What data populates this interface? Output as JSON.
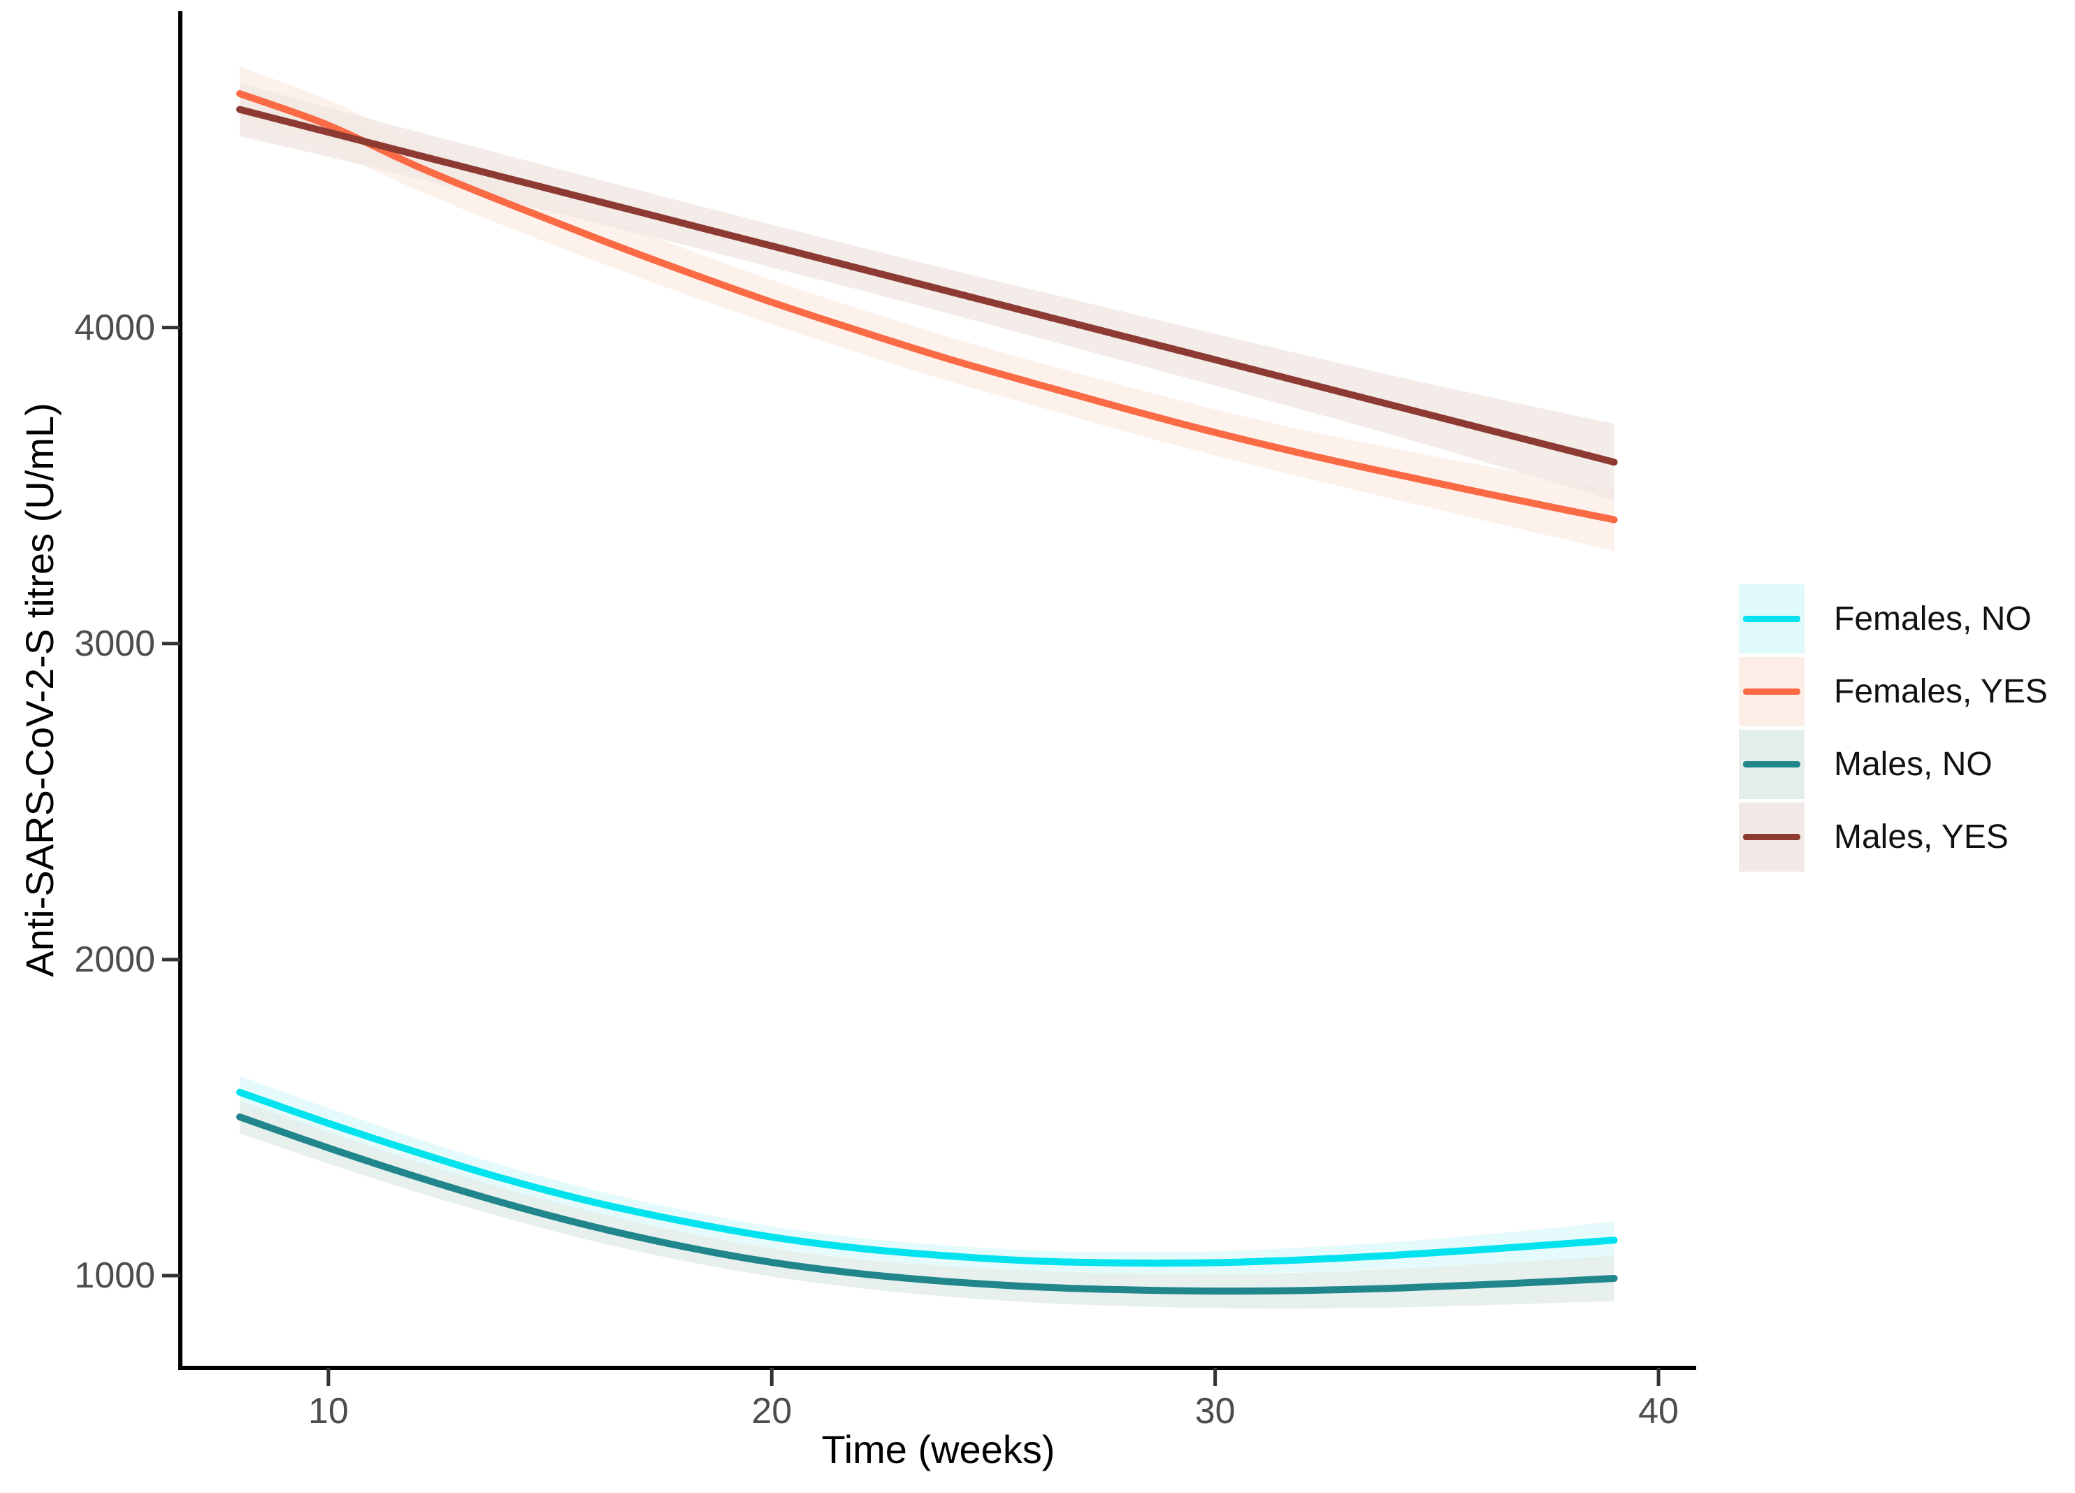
{
  "window": {
    "background": "#ffffff"
  },
  "axes_style": {
    "axis_color": "#000000",
    "tick_color": "#333333",
    "tick_label_color": "#4d4d4d",
    "title_color": "#000000"
  },
  "chart_data": {
    "type": "line",
    "title": "",
    "xlabel": "Time (weeks)",
    "ylabel": "Anti-SARS-CoV-2-S titres (U/mL)",
    "grid": false,
    "legend_position": "right",
    "x_axis": {
      "ticks": [
        10,
        20,
        30,
        40
      ],
      "labels": [
        "10",
        "20",
        "30",
        "40"
      ],
      "range": [
        6.66,
        40.85
      ]
    },
    "y_axis": {
      "ticks": [
        1000,
        2000,
        3000,
        4000
      ],
      "labels": [
        "1000",
        "2000",
        "3000",
        "4000"
      ],
      "range": [
        708,
        5001
      ]
    },
    "x": [
      8,
      10,
      12,
      14,
      16,
      18,
      20,
      22,
      24,
      26,
      28,
      30,
      32,
      34,
      36,
      38,
      39
    ],
    "series": [
      {
        "name": "Females, NO",
        "line_color": "#00e3ee",
        "band_color": "#e0f9fa",
        "values": [
          1580,
          1482,
          1390,
          1305,
          1232,
          1172,
          1122,
          1086,
          1062,
          1046,
          1040,
          1041,
          1050,
          1064,
          1082,
          1102,
          1112
        ],
        "lower": [
          1528,
          1434,
          1346,
          1264,
          1194,
          1136,
          1088,
          1053,
          1029,
          1013,
          1006,
          1005,
          1011,
          1022,
          1035,
          1048,
          1052
        ],
        "upper": [
          1632,
          1530,
          1434,
          1346,
          1270,
          1208,
          1156,
          1119,
          1095,
          1079,
          1074,
          1077,
          1089,
          1106,
          1129,
          1156,
          1172
        ]
      },
      {
        "name": "Females, YES",
        "line_color": "#fa6a45",
        "band_color": "#fceee7",
        "values": [
          4740,
          4640,
          4510,
          4395,
          4285,
          4180,
          4080,
          3988,
          3900,
          3820,
          3742,
          3668,
          3600,
          3538,
          3478,
          3420,
          3392
        ],
        "lower": [
          4655,
          4560,
          4435,
          4320,
          4212,
          4108,
          4010,
          3918,
          3830,
          3750,
          3670,
          3595,
          3525,
          3458,
          3392,
          3326,
          3292
        ],
        "upper": [
          4825,
          4720,
          4585,
          4470,
          4358,
          4252,
          4150,
          4058,
          3970,
          3890,
          3814,
          3741,
          3675,
          3618,
          3564,
          3514,
          3492
        ]
      },
      {
        "name": "Males, NO",
        "line_color": "#21858c",
        "band_color": "#e3edea",
        "values": [
          1502,
          1404,
          1312,
          1228,
          1154,
          1092,
          1042,
          1006,
          981,
          964,
          955,
          951,
          953,
          960,
          971,
          984,
          991
        ],
        "lower": [
          1450,
          1354,
          1264,
          1182,
          1108,
          1047,
          997,
          960,
          933,
          914,
          903,
          897,
          896,
          899,
          906,
          915,
          919
        ],
        "upper": [
          1554,
          1454,
          1360,
          1274,
          1200,
          1137,
          1087,
          1052,
          1029,
          1014,
          1007,
          1005,
          1010,
          1021,
          1036,
          1053,
          1063
        ]
      },
      {
        "name": "Males, YES",
        "line_color": "#8d3b32",
        "band_color": "#f1e9e5",
        "values": [
          4690,
          4618,
          4546,
          4474,
          4402,
          4330,
          4258,
          4186,
          4114,
          4042,
          3970,
          3898,
          3826,
          3754,
          3682,
          3610,
          3574
        ],
        "lower": [
          4605,
          4540,
          4472,
          4402,
          4332,
          4262,
          4190,
          4118,
          4044,
          3968,
          3892,
          3816,
          3738,
          3660,
          3578,
          3495,
          3452
        ],
        "upper": [
          4775,
          4696,
          4620,
          4546,
          4472,
          4398,
          4326,
          4254,
          4184,
          4116,
          4048,
          3980,
          3914,
          3848,
          3786,
          3725,
          3696
        ]
      }
    ]
  }
}
